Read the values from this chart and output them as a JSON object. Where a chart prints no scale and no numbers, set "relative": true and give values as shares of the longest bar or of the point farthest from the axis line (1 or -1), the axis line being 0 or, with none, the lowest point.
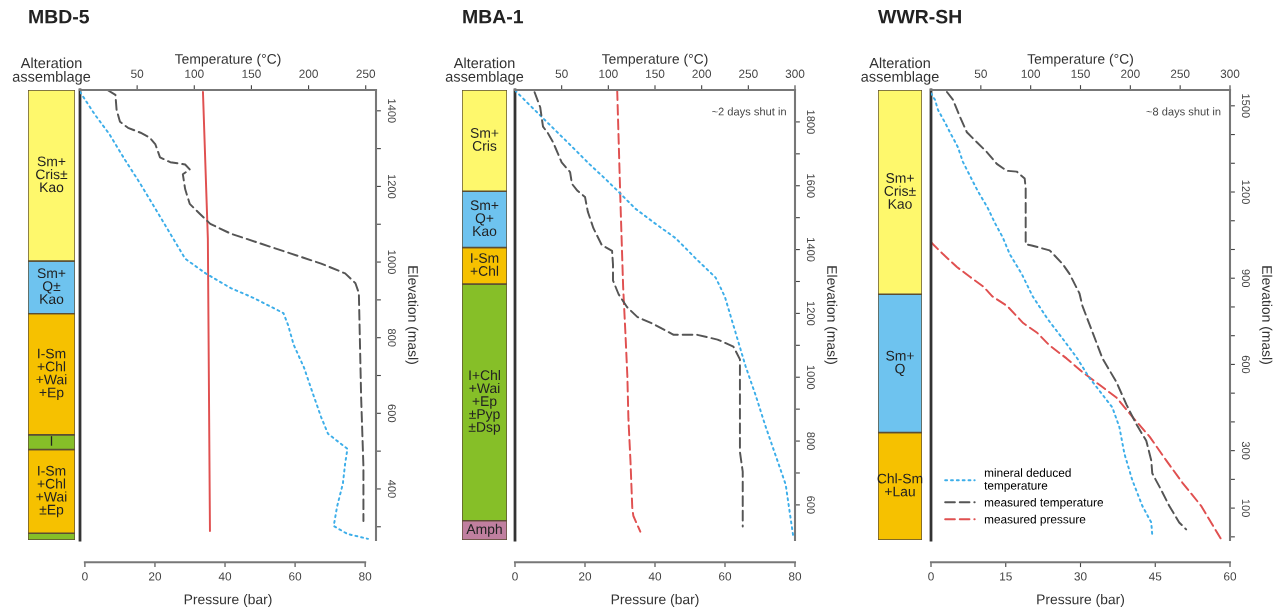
{
  "chart_data": [
    {
      "type": "bar",
      "stacked": true,
      "relative": true,
      "title": "MBD-5",
      "xlabel": "Alteration\nassemblage",
      "categories": [
        null
      ],
      "tick_labels": false,
      "series": [
        {
          "color": "#86bf28",
          "values": [
            0.015
          ]
        },
        {
          "name": "I-Sm\n+Chl\n+Wai\n±Ep",
          "color": "#f6c100",
          "values": [
            0.186
          ]
        },
        {
          "name": "I",
          "color": "#86bf28",
          "values": [
            0.033
          ]
        },
        {
          "name": "I-Sm\n+Chl\n+Wai\n+Ep",
          "color": "#f6c100",
          "values": [
            0.269
          ]
        },
        {
          "name": "Sm+\nQ±\nKao",
          "color": "#6ec3ef",
          "values": [
            0.117
          ]
        },
        {
          "name": "Sm+\nCris±\nKao",
          "color": "#fef86c",
          "values": [
            0.38
          ]
        }
      ]
    },
    {
      "type": "line",
      "xlabel": "Pressure (bar)",
      "x2label": "Temperature (°C)",
      "ylabel": "Elevation (masl)",
      "xlim": [
        -1.4,
        83.1
      ],
      "xticks": [
        0,
        20,
        40,
        60,
        80
      ],
      "x2lim": [
        0,
        259
      ],
      "x2ticks": [
        50,
        100,
        150,
        200,
        250
      ],
      "ylim": [
        265,
        1455
      ],
      "yticks": [
        {
          "value": 300,
          "label": null
        },
        400,
        {
          "value": 500,
          "label": null
        },
        600,
        {
          "value": 700,
          "label": null
        },
        800,
        {
          "value": 900,
          "label": null
        },
        1000,
        {
          "value": 1100,
          "label": null
        },
        1200,
        {
          "value": 1300,
          "label": null
        },
        1400
      ],
      "series": [
        {
          "axis": "x2",
          "color": "#3daee9",
          "line_style": "dotted",
          "x": [
            0,
            13,
            26,
            39,
            53,
            66,
            79,
            92,
            110,
            132,
            152,
            178,
            182,
            187,
            196,
            204,
            211,
            217,
            234,
            232,
            230,
            225,
            222,
            234,
            252
          ],
          "values": [
            1450,
            1390,
            1337,
            1272,
            1206,
            1141,
            1075,
            1009,
            970,
            931,
            905,
            865,
            834,
            781,
            721,
            650,
            590,
            546,
            506,
            467,
            414,
            354,
            302,
            281,
            268
          ]
        },
        {
          "axis": "x2",
          "color": "#555555",
          "line_style": "dashed",
          "x": [
            24,
            31,
            32,
            35,
            42,
            53,
            61,
            66,
            70,
            79,
            92,
            96,
            90,
            92,
            96,
            105,
            114,
            132,
            158,
            184,
            211,
            232,
            241,
            244,
            246,
            248,
            248
          ],
          "values": [
            1455,
            1442,
            1403,
            1371,
            1355,
            1342,
            1329,
            1311,
            1277,
            1264,
            1258,
            1245,
            1232,
            1193,
            1154,
            1127,
            1101,
            1075,
            1049,
            1023,
            996,
            970,
            944,
            918,
            642,
            459,
            315
          ]
        },
        {
          "color": "#e05050",
          "line_style": "solid",
          "x": [
            33.7,
            35.1,
            35.7
          ],
          "values": [
            1450,
            1062,
            289
          ]
        }
      ]
    },
    {
      "type": "bar",
      "stacked": true,
      "relative": true,
      "title": "MBA-1",
      "xlabel": "Alteration\nassemblage",
      "categories": [
        null
      ],
      "tick_labels": false,
      "series": [
        {
          "name": "Amph",
          "color": "#c07f9f",
          "values": [
            0.043
          ]
        },
        {
          "name": "I+Chl\n+Wai\n+Ep\n±Pyp\n±Dsp",
          "color": "#86bf28",
          "values": [
            0.526
          ]
        },
        {
          "name": "I-Sm\n+Chl",
          "color": "#f6c100",
          "values": [
            0.081
          ]
        },
        {
          "name": "Sm+\nQ+\nKao",
          "color": "#6ec3ef",
          "values": [
            0.125
          ]
        },
        {
          "name": "Sm+\nCris",
          "color": "#fef86c",
          "values": [
            0.225
          ]
        }
      ]
    },
    {
      "type": "line",
      "xlabel": "Pressure (bar)",
      "x2label": "Temperature (°C)",
      "ylabel": "Elevation (masl)",
      "xlim": [
        0,
        80
      ],
      "xticks": [
        0,
        20,
        40,
        60,
        80
      ],
      "x2lim": [
        0,
        300
      ],
      "x2ticks": [
        50,
        100,
        150,
        200,
        250,
        300
      ],
      "ylim": [
        490,
        1900
      ],
      "yticks": [
        600,
        {
          "value": 700,
          "label": null
        },
        800,
        {
          "value": 900,
          "label": null
        },
        1000,
        {
          "value": 1100,
          "label": null
        },
        1200,
        {
          "value": 1300,
          "label": null
        },
        1400,
        {
          "value": 1500,
          "label": null
        },
        1600,
        {
          "value": 1700,
          "label": null
        },
        1800
      ],
      "annotations": [
        "~2 days shut in"
      ],
      "series": [
        {
          "axis": "x2",
          "color": "#3daee9",
          "line_style": "dotted",
          "x": [
            0,
            16,
            32,
            48,
            64,
            80,
            97,
            113,
            129,
            150,
            172,
            193,
            215,
            220,
            225,
            236,
            247,
            258,
            268,
            279,
            290,
            298
          ],
          "values": [
            1899,
            1852,
            1806,
            1760,
            1714,
            1667,
            1621,
            1575,
            1528,
            1482,
            1436,
            1374,
            1312,
            1282,
            1251,
            1143,
            1035,
            942,
            850,
            757,
            664,
            504
          ]
        },
        {
          "axis": "x2",
          "color": "#555555",
          "line_style": "dashed",
          "x": [
            21,
            27,
            30,
            35,
            41,
            50,
            59,
            61,
            67,
            75,
            78,
            84,
            93,
            104,
            105,
            105,
            111,
            120,
            131,
            148,
            170,
            195,
            217,
            234,
            241,
            241,
            244,
            244
          ],
          "values": [
            1893,
            1846,
            1785,
            1766,
            1735,
            1673,
            1643,
            1606,
            1584,
            1565,
            1519,
            1467,
            1414,
            1396,
            1353,
            1303,
            1260,
            1220,
            1189,
            1167,
            1133,
            1133,
            1118,
            1096,
            1056,
            766,
            704,
            532
          ]
        },
        {
          "color": "#e05050",
          "line_style": "dashed",
          "x": [
            29.2,
            30.1,
            30.9,
            31.5,
            32.1,
            32.4,
            33.0,
            33.5,
            33.8,
            35.8
          ],
          "values": [
            1899,
            1559,
            1282,
            1149,
            1004,
            871,
            735,
            593,
            566,
            516
          ]
        }
      ]
    },
    {
      "type": "bar",
      "stacked": true,
      "relative": true,
      "title": "WWR-SH",
      "xlabel": "Alteration\nassemblage",
      "categories": [
        null
      ],
      "tick_labels": false,
      "series": [
        {
          "name": "Chl-Sm\n+Lau",
          "color": "#f6c100",
          "values": [
            0.239
          ]
        },
        {
          "name": "Sm+\nQ",
          "color": "#6ec3ef",
          "values": [
            0.307
          ]
        },
        {
          "name": "Sm+\nCris±\nKao",
          "color": "#fef86c",
          "values": [
            0.454
          ]
        }
      ]
    },
    {
      "type": "line",
      "xlabel": "Pressure (bar)",
      "x2label": "Temperature (°C)",
      "ylabel": "Elevation (masl)",
      "xlim": [
        0,
        60
      ],
      "xticks": [
        0,
        15,
        30,
        45,
        60
      ],
      "x2lim": [
        0,
        300
      ],
      "x2ticks": [
        50,
        100,
        150,
        200,
        250,
        300
      ],
      "ylim": [
        -11,
        1555
      ],
      "yticks": [
        {
          "value": 0,
          "label": null
        },
        100,
        {
          "value": 200,
          "label": null
        },
        300,
        {
          "value": 400,
          "label": null
        },
        {
          "value": 500,
          "label": null
        },
        600,
        {
          "value": 700,
          "label": null
        },
        {
          "value": 800,
          "label": null
        },
        900,
        {
          "value": 1000,
          "label": null
        },
        {
          "value": 1100,
          "label": null
        },
        1200,
        {
          "value": 1300,
          "label": null
        },
        {
          "value": 1400,
          "label": null
        },
        1500
      ],
      "annotations": [
        "~8 days shut in"
      ],
      "legend": "bottom left",
      "series": [
        {
          "name": "mineral deduced\ntemperature",
          "axis": "x2",
          "color": "#3daee9",
          "line_style": "dotted",
          "x": [
            0,
            4,
            7,
            14,
            19,
            27,
            32,
            39,
            47,
            57,
            64,
            72,
            79,
            91,
            101,
            102,
            117,
            132,
            146,
            159,
            172,
            182,
            189,
            194,
            202,
            212,
            221,
            222
          ],
          "values": [
            1544,
            1521,
            1486,
            1442,
            1408,
            1356,
            1305,
            1257,
            1203,
            1144,
            1093,
            1042,
            984,
            915,
            844,
            837,
            758,
            690,
            625,
            553,
            495,
            450,
            382,
            290,
            197,
            108,
            50,
            6
          ]
        },
        {
          "name": "measured temperature",
          "axis": "x2",
          "color": "#555555",
          "line_style": "dashed",
          "x": [
            16,
            22,
            29,
            36,
            46,
            56,
            66,
            76,
            86,
            94,
            95,
            95,
            101,
            119,
            132,
            139,
            149,
            152,
            166,
            172,
            186,
            196,
            206,
            216,
            221,
            222,
            231,
            239,
            249,
            256
          ],
          "values": [
            1548,
            1521,
            1462,
            1408,
            1373,
            1339,
            1298,
            1274,
            1271,
            1247,
            1213,
            1018,
            1014,
            997,
            950,
            915,
            847,
            803,
            676,
            621,
            539,
            461,
            392,
            334,
            266,
            221,
            163,
            108,
            50,
            26
          ]
        },
        {
          "name": "measured pressure",
          "color": "#e05050",
          "line_style": "dashed",
          "x": [
            0,
            2.4,
            5.2,
            7.8,
            10.5,
            12.3,
            15.3,
            18.5,
            21.3,
            23.8,
            27.2,
            30.4,
            33.8,
            37.2,
            40.5,
            43.9,
            47.2,
            50.5,
            54.2,
            58.2
          ],
          "values": [
            1025,
            984,
            939,
            905,
            871,
            837,
            803,
            744,
            710,
            666,
            621,
            573,
            529,
            485,
            416,
            348,
            266,
            187,
            108,
            -8
          ]
        }
      ]
    }
  ]
}
